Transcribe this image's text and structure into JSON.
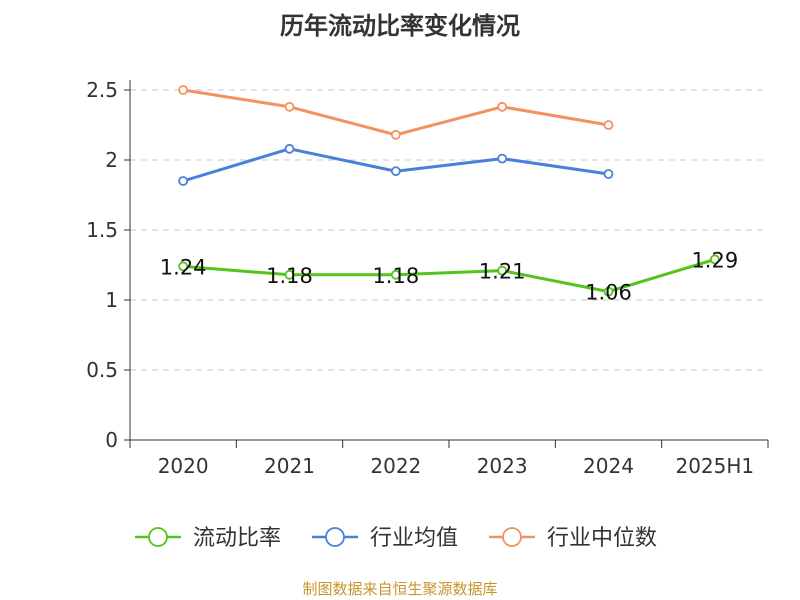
{
  "chart_data": {
    "type": "line",
    "title": "历年流动比率变化情况",
    "categories": [
      "2020",
      "2021",
      "2022",
      "2023",
      "2024",
      "2025H1"
    ],
    "y_ticks": [
      "0",
      "0.5",
      "1",
      "1.5",
      "2",
      "2.5"
    ],
    "ylim": [
      0,
      2.5
    ],
    "grid": true,
    "legend_position": "bottom",
    "series": [
      {
        "name": "流动比率",
        "color": "#52c41a",
        "values": [
          1.24,
          1.18,
          1.18,
          1.21,
          1.06,
          1.29
        ],
        "labels": [
          "1.24",
          "1.18",
          "1.18",
          "1.21",
          "1.06",
          "1.29"
        ]
      },
      {
        "name": "行业均值",
        "color": "#4a7fdb",
        "values": [
          1.85,
          2.08,
          1.92,
          2.01,
          1.9,
          null
        ]
      },
      {
        "name": "行业中位数",
        "color": "#f4915e",
        "values": [
          2.5,
          2.38,
          2.18,
          2.38,
          2.25,
          null
        ]
      }
    ]
  },
  "source": "制图数据来自恒生聚源数据库"
}
